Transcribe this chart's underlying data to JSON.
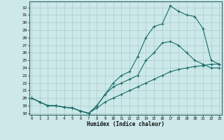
{
  "xlabel": "Humidex (Indice chaleur)",
  "bg_color": "#cce8e8",
  "grid_color": "#b0d4d4",
  "line_color": "#1a6b6b",
  "x": [
    0,
    1,
    2,
    3,
    4,
    5,
    6,
    7,
    8,
    9,
    10,
    11,
    12,
    13,
    14,
    15,
    16,
    17,
    18,
    19,
    20,
    21,
    22,
    23
  ],
  "line1": [
    20.0,
    19.5,
    19.0,
    19.0,
    18.8,
    18.7,
    18.3,
    18.0,
    19.0,
    20.5,
    22.0,
    23.0,
    23.5,
    25.5,
    28.0,
    29.5,
    29.8,
    32.2,
    31.5,
    31.0,
    30.8,
    29.2,
    25.0,
    24.5
  ],
  "line2": [
    20.0,
    19.5,
    19.0,
    19.0,
    18.8,
    18.7,
    18.3,
    18.0,
    19.0,
    20.5,
    21.5,
    22.0,
    22.5,
    23.0,
    25.0,
    26.0,
    27.3,
    27.5,
    27.0,
    26.0,
    25.0,
    24.5,
    24.0,
    24.0
  ],
  "line3": [
    20.0,
    19.5,
    19.0,
    19.0,
    18.8,
    18.7,
    18.3,
    18.0,
    18.7,
    19.5,
    20.0,
    20.5,
    21.0,
    21.5,
    22.0,
    22.5,
    23.0,
    23.5,
    23.8,
    24.0,
    24.2,
    24.3,
    24.5,
    24.5
  ],
  "ylim": [
    17.8,
    32.8
  ],
  "yticks": [
    18,
    19,
    20,
    21,
    22,
    23,
    24,
    25,
    26,
    27,
    28,
    29,
    30,
    31,
    32
  ],
  "xticks": [
    0,
    1,
    2,
    3,
    4,
    5,
    6,
    7,
    8,
    9,
    10,
    11,
    12,
    13,
    14,
    15,
    16,
    17,
    18,
    19,
    20,
    21,
    22,
    23
  ],
  "xlim": [
    -0.3,
    23.3
  ]
}
